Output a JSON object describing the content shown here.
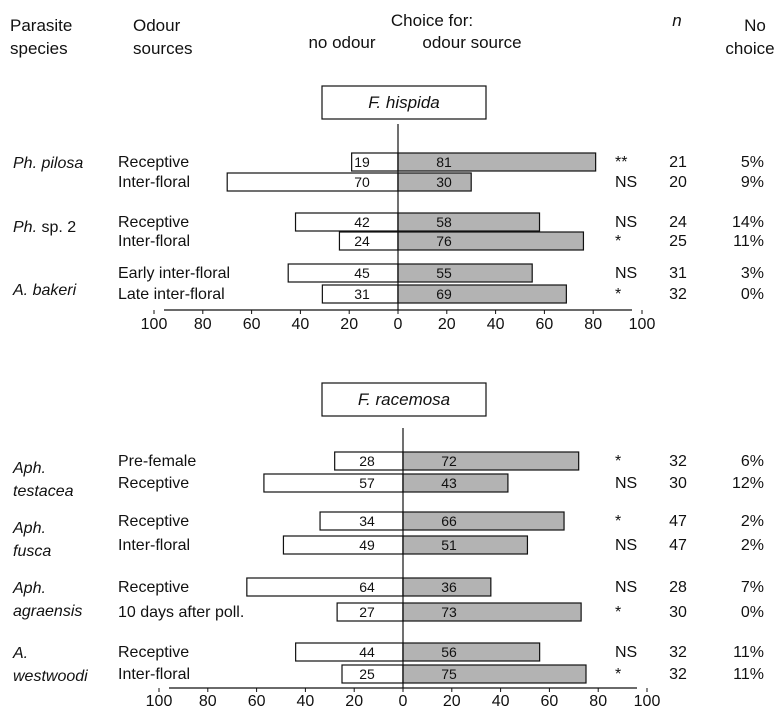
{
  "headers": {
    "species": [
      "Parasite",
      "species"
    ],
    "sources": [
      "Odour",
      "sources"
    ],
    "choice_for": "Choice for:",
    "no_odour": "no odour",
    "odour_source": "odour source",
    "n": "n",
    "no_choice": [
      "No",
      "choice"
    ]
  },
  "colors": {
    "bar_no_odour": "#ffffff",
    "bar_odour": "#b3b3b3",
    "stroke": "#111111"
  },
  "chart_data": [
    {
      "type": "bar",
      "orientation": "horizontal-diverging",
      "title": "F. hispida",
      "axis_ticks": [
        "100",
        "80",
        "60",
        "40",
        "20",
        "0",
        "20",
        "40",
        "60",
        "80",
        "100"
      ],
      "xlim": [
        -100,
        100
      ],
      "series": [
        {
          "name": "no odour",
          "values": [
            19,
            70,
            42,
            24,
            45,
            31
          ]
        },
        {
          "name": "odour source",
          "values": [
            81,
            30,
            58,
            76,
            55,
            69
          ]
        }
      ],
      "groups": [
        {
          "species": [
            "Ph. pilosa"
          ],
          "species_italic": [
            true
          ],
          "rows": [
            0,
            1
          ]
        },
        {
          "species": [
            "Ph. sp. 2"
          ],
          "species_italic": [
            true
          ],
          "rows": [
            2,
            3
          ]
        },
        {
          "species": [
            "A. bakeri"
          ],
          "species_italic": [
            true
          ],
          "rows": [
            4,
            5
          ]
        }
      ],
      "rows": [
        {
          "source": "Receptive",
          "no_odour": 19,
          "odour": 81,
          "sig": "**",
          "n": "21",
          "no_choice": "5%"
        },
        {
          "source": "Inter-floral",
          "no_odour": 70,
          "odour": 30,
          "sig": "NS",
          "n": "20",
          "no_choice": "9%"
        },
        {
          "source": "Receptive",
          "no_odour": 42,
          "odour": 58,
          "sig": "NS",
          "n": "24",
          "no_choice": "14%"
        },
        {
          "source": "Inter-floral",
          "no_odour": 24,
          "odour": 76,
          "sig": "*",
          "n": "25",
          "no_choice": "11%"
        },
        {
          "source": "Early inter-floral",
          "no_odour": 45,
          "odour": 55,
          "sig": "NS",
          "n": "31",
          "no_choice": "3%"
        },
        {
          "source": "Late inter-floral",
          "no_odour": 31,
          "odour": 69,
          "sig": "*",
          "n": "32",
          "no_choice": "0%"
        }
      ]
    },
    {
      "type": "bar",
      "orientation": "horizontal-diverging",
      "title": "F. racemosa",
      "axis_ticks": [
        "100",
        "80",
        "60",
        "40",
        "20",
        "0",
        "20",
        "40",
        "60",
        "80",
        "100"
      ],
      "xlim": [
        -100,
        100
      ],
      "series": [
        {
          "name": "no odour",
          "values": [
            28,
            57,
            34,
            49,
            64,
            27,
            44,
            25
          ]
        },
        {
          "name": "odour source",
          "values": [
            72,
            43,
            66,
            51,
            36,
            73,
            56,
            75
          ]
        }
      ],
      "groups": [
        {
          "species": [
            "Aph.",
            "testacea"
          ],
          "rows": [
            0,
            1
          ]
        },
        {
          "species": [
            "Aph.",
            "fusca"
          ],
          "rows": [
            2,
            3
          ]
        },
        {
          "species": [
            "Aph.",
            "agraensis"
          ],
          "rows": [
            4,
            5
          ]
        },
        {
          "species": [
            "A.",
            "westwoodi"
          ],
          "rows": [
            6,
            7
          ]
        }
      ],
      "rows": [
        {
          "source": "Pre-female",
          "no_odour": 28,
          "odour": 72,
          "sig": "*",
          "n": "32",
          "no_choice": "6%"
        },
        {
          "source": "Receptive",
          "no_odour": 57,
          "odour": 43,
          "sig": "NS",
          "n": "30",
          "no_choice": "12%"
        },
        {
          "source": "Receptive",
          "no_odour": 34,
          "odour": 66,
          "sig": "*",
          "n": "47",
          "no_choice": "2%"
        },
        {
          "source": "Inter-floral",
          "no_odour": 49,
          "odour": 51,
          "sig": "NS",
          "n": "47",
          "no_choice": "2%"
        },
        {
          "source": "Receptive",
          "no_odour": 64,
          "odour": 36,
          "sig": "NS",
          "n": "28",
          "no_choice": "7%"
        },
        {
          "source": "10 days after poll.",
          "no_odour": 27,
          "odour": 73,
          "sig": "*",
          "n": "30",
          "no_choice": "0%"
        },
        {
          "source": "Receptive",
          "no_odour": 44,
          "odour": 56,
          "sig": "NS",
          "n": "32",
          "no_choice": "11%"
        },
        {
          "source": "Inter-floral",
          "no_odour": 25,
          "odour": 75,
          "sig": "*",
          "n": "32",
          "no_choice": "11%"
        }
      ]
    }
  ]
}
